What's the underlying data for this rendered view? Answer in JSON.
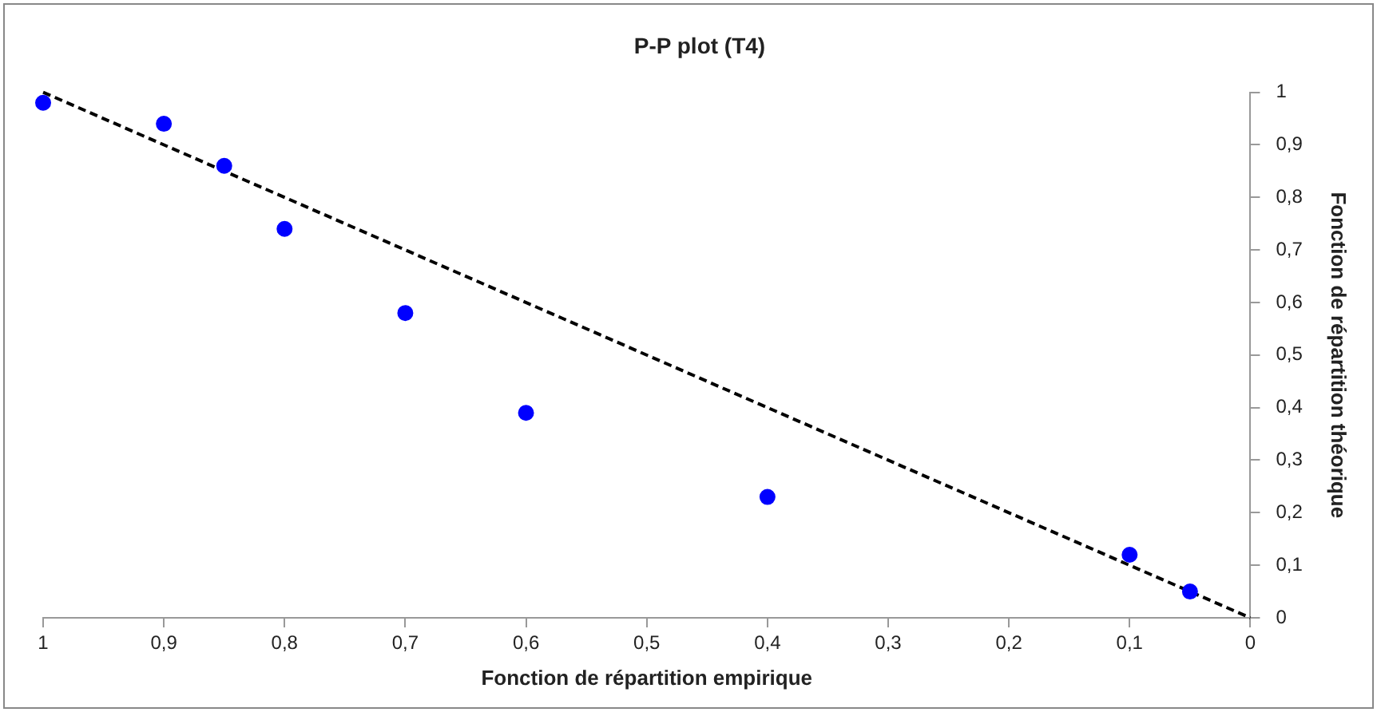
{
  "chart_data": {
    "type": "scatter",
    "title": "P-P plot (T4)",
    "xlabel": "Fonction de répartition empirique",
    "ylabel": "Fonction de répartition théorique",
    "x": [
      1,
      0.9,
      0.85,
      0.8,
      0.7,
      0.6,
      0.4,
      0.1,
      0.05
    ],
    "series": [
      {
        "color": "#0000ff",
        "marker": "circle",
        "values": [
          0.98,
          0.94,
          0.86,
          0.74,
          0.58,
          0.39,
          0.23,
          0.12,
          0.05
        ]
      },
      {
        "type": "line",
        "color": "#000000",
        "line_style": "dashed",
        "marker": "none",
        "x": [
          1,
          0
        ],
        "values": [
          1,
          0
        ]
      }
    ],
    "xlim": [
      1,
      0
    ],
    "ylim": [
      0,
      1
    ],
    "xticks": [
      1,
      {
        "value": 0.9,
        "label": "0,9"
      },
      {
        "value": 0.8,
        "label": "0,8"
      },
      {
        "value": 0.7,
        "label": "0,7"
      },
      {
        "value": 0.6,
        "label": "0,6"
      },
      {
        "value": 0.5,
        "label": "0,5"
      },
      {
        "value": 0.4,
        "label": "0,4"
      },
      {
        "value": 0.3,
        "label": "0,3"
      },
      {
        "value": 0.2,
        "label": "0,2"
      },
      {
        "value": 0.1,
        "label": "0,1"
      },
      0
    ],
    "yticks": [
      0,
      {
        "value": 0.1,
        "label": "0,1"
      },
      {
        "value": 0.2,
        "label": "0,2"
      },
      {
        "value": 0.3,
        "label": "0,3"
      },
      {
        "value": 0.4,
        "label": "0,4"
      },
      {
        "value": 0.5,
        "label": "0,5"
      },
      {
        "value": 0.6,
        "label": "0,6"
      },
      {
        "value": 0.7,
        "label": "0,7"
      },
      {
        "value": 0.8,
        "label": "0,8"
      },
      {
        "value": 0.9,
        "label": "0,9"
      },
      1
    ],
    "grid": false,
    "legend": false
  }
}
